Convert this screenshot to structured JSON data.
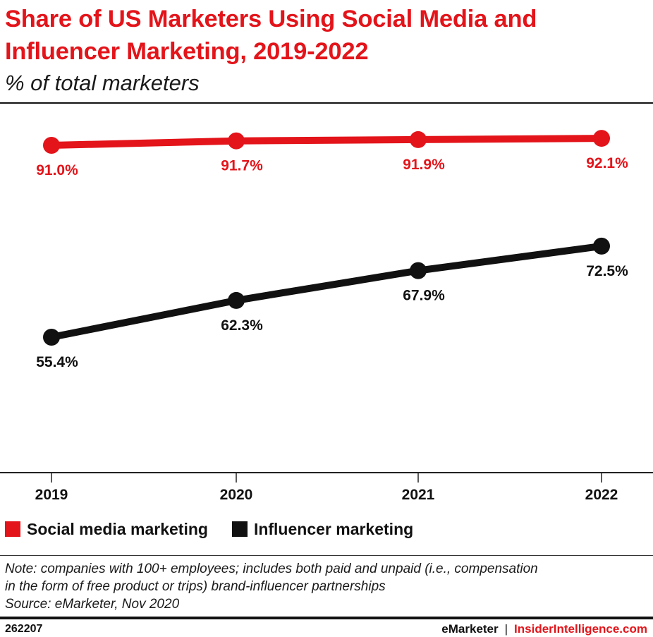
{
  "title": "Share of US Marketers Using Social Media and Influencer Marketing, 2019-2022",
  "subtitle": "% of total marketers",
  "chart_data": {
    "type": "line",
    "x": [
      "2019",
      "2020",
      "2021",
      "2022"
    ],
    "ylim": [
      0,
      100
    ],
    "grid": false,
    "legend_placement": "bottom-left",
    "series": [
      {
        "name": "Social media marketing",
        "values": [
          91.0,
          91.7,
          91.9,
          92.1
        ],
        "labels": [
          "91.0%",
          "91.7%",
          "91.9%",
          "92.1%"
        ],
        "label_position": "below",
        "color": "#e3141a"
      },
      {
        "name": "Influencer marketing",
        "values": [
          55.4,
          62.3,
          67.9,
          72.5
        ],
        "labels": [
          "55.4%",
          "62.3%",
          "67.9%",
          "72.5%"
        ],
        "label_position": "below",
        "color": "#111111"
      }
    ]
  },
  "legend": {
    "items": [
      {
        "label": "Social media marketing",
        "color": "#e3141a"
      },
      {
        "label": "Influencer marketing",
        "color": "#111111"
      }
    ]
  },
  "note": {
    "line1": "Note: companies with 100+ employees; includes both paid and unpaid (i.e., compensation",
    "line2": "in the form of free product or trips) brand-influencer partnerships",
    "line3": "Source: eMarketer, Nov 2020"
  },
  "footer": {
    "chart_id": "262207",
    "brand_left": "eMarketer",
    "separator": "|",
    "brand_right": "InsiderIntelligence.com"
  }
}
